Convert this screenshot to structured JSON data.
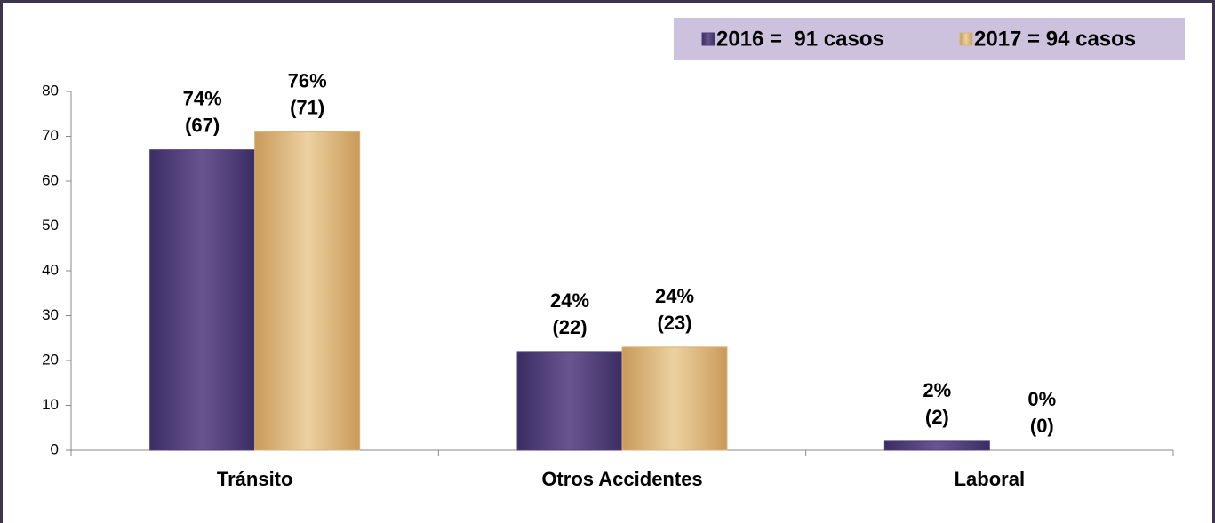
{
  "chart_data": {
    "type": "bar",
    "categories": [
      "Tránsito",
      "Otros Accidentes",
      "Laboral"
    ],
    "series": [
      {
        "name": "2016 =  91 casos",
        "color": "#4b3c78",
        "values": [
          67,
          22,
          2
        ],
        "value_labels": [
          [
            "74%",
            "(67)"
          ],
          [
            "24%",
            "(22)"
          ],
          [
            "2%",
            "(2)"
          ]
        ]
      },
      {
        "name": "2017 = 94 casos",
        "color": "#d8b27a",
        "values": [
          71,
          23,
          0
        ],
        "value_labels": [
          [
            "76%",
            "(71)"
          ],
          [
            "24%",
            "(23)"
          ],
          [
            "0%",
            "(0)"
          ]
        ]
      }
    ],
    "ylim": [
      0,
      80
    ],
    "yticks": [
      0,
      10,
      20,
      30,
      40,
      50,
      60,
      70,
      80
    ],
    "grid": false,
    "legend": "top-right"
  }
}
